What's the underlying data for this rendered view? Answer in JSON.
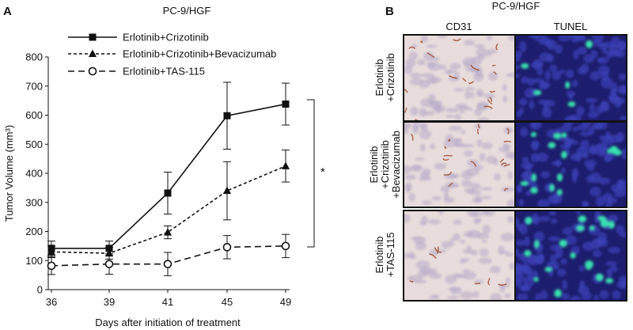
{
  "panel_a": {
    "letter": "A",
    "title": "PC-9/HGF"
  },
  "panel_b": {
    "letter": "B",
    "title": "PC-9/HGF",
    "columns": [
      "CD31",
      "TUNEL"
    ],
    "rows": [
      [
        "Erlotinib",
        "+Crizotinib"
      ],
      [
        "Erlotinib",
        "+Crizotinib",
        "+Bevacizumab"
      ],
      [
        "Erlotinib",
        "+TAS-115"
      ]
    ],
    "colors": {
      "ihc_background": "#e8dcdc",
      "ihc_stain": "#9a4a2a",
      "ihc_nuclei": "#b7acc9",
      "fluor_background": "#1c1d6e",
      "fluor_nuclei": "#3a40b6",
      "fluor_positive": "#39e0b0",
      "border": "#111111"
    }
  },
  "chart_data": {
    "type": "line",
    "title": "PC-9/HGF",
    "xlabel": "Days after initiation of treatment",
    "ylabel": "Tumor Volume (mm³)",
    "categories": [
      "36",
      "39",
      "41",
      "45",
      "49"
    ],
    "ylim": [
      0,
      800
    ],
    "yticks": [
      0,
      100,
      200,
      300,
      400,
      500,
      600,
      700,
      800
    ],
    "grid": false,
    "legend_position": "top-left",
    "significance_label": "*",
    "series": [
      {
        "name": "Erlotinib+Crizotinib",
        "marker": "square",
        "line_style": "solid",
        "values": [
          142,
          142,
          332,
          598,
          638
        ],
        "errors": [
          25,
          25,
          72,
          115,
          72
        ]
      },
      {
        "name": "Erlotinib+Crizotinib+Bevacizumab",
        "marker": "triangle",
        "line_style": "dashed",
        "values": [
          130,
          125,
          197,
          340,
          425
        ],
        "errors": [
          20,
          20,
          22,
          100,
          55
        ]
      },
      {
        "name": "Erlotinib+TAS-115",
        "marker": "open-circle",
        "line_style": "long-dashed",
        "values": [
          82,
          88,
          88,
          146,
          150
        ],
        "errors": [
          30,
          35,
          40,
          40,
          40
        ]
      }
    ]
  }
}
